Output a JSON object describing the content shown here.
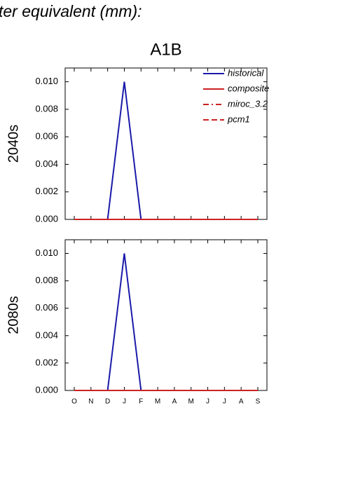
{
  "header": {
    "title": "ter equivalent (mm):"
  },
  "chart_data": [
    {
      "type": "line",
      "title": "A1B",
      "ylabel": "2040s",
      "legend": "top-right",
      "categories": [
        null,
        null,
        null,
        null,
        null,
        null,
        null,
        null,
        null,
        null,
        null,
        null
      ],
      "ylim": [
        0,
        0.011
      ],
      "yticks": [
        {
          "value": 0,
          "label": "0.000"
        },
        {
          "value": 0.002,
          "label": "0.002"
        },
        {
          "value": 0.004,
          "label": "0.004"
        },
        {
          "value": 0.006,
          "label": "0.006"
        },
        {
          "value": 0.008,
          "label": "0.008"
        },
        {
          "value": 0.01,
          "label": "0.010"
        }
      ],
      "series": [
        {
          "name": "historical",
          "color": "#1a1aaa",
          "dash": "solid",
          "values": [
            0,
            0,
            0,
            0.01,
            0,
            0,
            0,
            0,
            0,
            0,
            0,
            0
          ]
        },
        {
          "name": "composite",
          "color": "#cc2222",
          "dash": "solid",
          "values": [
            0,
            0,
            0,
            0,
            0,
            0,
            0,
            0,
            0,
            0,
            0,
            0
          ]
        },
        {
          "name": "miroc_3.2",
          "color": "#cc2222",
          "dash": "dashdot",
          "values": [
            0,
            0,
            0,
            0,
            0,
            0,
            0,
            0,
            0,
            0,
            0,
            0
          ]
        },
        {
          "name": "pcm1",
          "color": "#cc2222",
          "dash": "dashed",
          "values": [
            0,
            0,
            0,
            0,
            0,
            0,
            0,
            0,
            0,
            0,
            0,
            0
          ]
        }
      ]
    },
    {
      "type": "line",
      "ylabel": "2080s",
      "categories": [
        "O",
        "N",
        "D",
        "J",
        "F",
        "M",
        "A",
        "M",
        "J",
        "J",
        "A",
        "S"
      ],
      "ylim": [
        0,
        0.011
      ],
      "yticks": [
        {
          "value": 0,
          "label": "0.000"
        },
        {
          "value": 0.002,
          "label": "0.002"
        },
        {
          "value": 0.004,
          "label": "0.004"
        },
        {
          "value": 0.006,
          "label": "0.006"
        },
        {
          "value": 0.008,
          "label": "0.008"
        },
        {
          "value": 0.01,
          "label": "0.010"
        }
      ],
      "series": [
        {
          "color": "#1a1aaa",
          "dash": "solid",
          "values": [
            0,
            0,
            0,
            0.01,
            0,
            0,
            0,
            0,
            0,
            0,
            0,
            0
          ]
        },
        {
          "color": "#cc2222",
          "dash": "solid",
          "values": [
            0,
            0,
            0,
            0,
            0,
            0,
            0,
            0,
            0,
            0,
            0,
            0
          ]
        },
        {
          "color": "#cc2222",
          "dash": "dashdot",
          "values": [
            0,
            0,
            0,
            0,
            0,
            0,
            0,
            0,
            0,
            0,
            0,
            0
          ]
        },
        {
          "color": "#cc2222",
          "dash": "dashed",
          "values": [
            0,
            0,
            0,
            0,
            0,
            0,
            0,
            0,
            0,
            0,
            0,
            0
          ]
        }
      ]
    }
  ]
}
